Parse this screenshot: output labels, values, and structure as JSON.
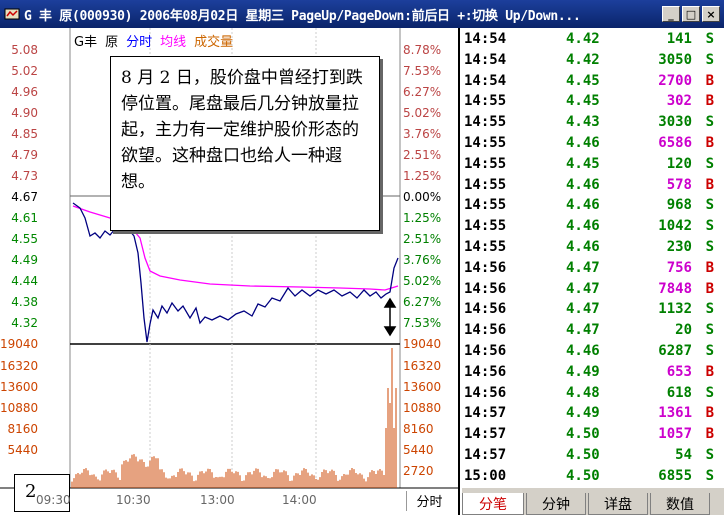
{
  "window": {
    "title": "G 丰   原(000930) 2006年08月02日 星期三 PageUp/PageDown:前后日 +:切换 Up/Down...",
    "buttons": [
      "_",
      "□",
      "×"
    ]
  },
  "legend": {
    "name": "G丰",
    "sub": "原",
    "fenshi": "分时",
    "junxian": "均线",
    "volume": "成交量"
  },
  "price_axis_left": [
    "5.08",
    "5.02",
    "4.96",
    "4.90",
    "4.85",
    "4.79",
    "4.73",
    "4.67",
    "4.61",
    "4.55",
    "4.49",
    "4.44",
    "4.38",
    "4.32"
  ],
  "price_axis_right": [
    "8.78%",
    "7.53%",
    "6.27%",
    "5.02%",
    "3.76%",
    "2.51%",
    "1.25%",
    "0.00%",
    "1.25%",
    "2.51%",
    "3.76%",
    "5.02%",
    "6.27%",
    "7.53%"
  ],
  "volume_axis_left": [
    "19040",
    "16320",
    "13600",
    "10880",
    "8160",
    "5440"
  ],
  "volume_axis_right": [
    "19040",
    "16320",
    "13600",
    "10880",
    "8160",
    "5440",
    "2720"
  ],
  "time_axis": [
    "09:30",
    "10:30",
    "13:00",
    "14:00"
  ],
  "fenshi_tab": "分时",
  "callout": "8 月 2 日，股价盘中曾经打到跌停位置。尾盘最后几分钟放量拉起，主力有一定维护股价形态的欲望。这种盘口也给人一种遐想。",
  "figure_number": "2",
  "ticks": [
    {
      "time": "14:54",
      "price": "4.42",
      "vol": "141",
      "side": "S"
    },
    {
      "time": "14:54",
      "price": "4.42",
      "vol": "3050",
      "side": "S"
    },
    {
      "time": "14:54",
      "price": "4.45",
      "vol": "2700",
      "side": "B"
    },
    {
      "time": "14:55",
      "price": "4.45",
      "vol": "302",
      "side": "B"
    },
    {
      "time": "14:55",
      "price": "4.43",
      "vol": "3030",
      "side": "S"
    },
    {
      "time": "14:55",
      "price": "4.46",
      "vol": "6586",
      "side": "B"
    },
    {
      "time": "14:55",
      "price": "4.45",
      "vol": "120",
      "side": "S"
    },
    {
      "time": "14:55",
      "price": "4.46",
      "vol": "578",
      "side": "B"
    },
    {
      "time": "14:55",
      "price": "4.46",
      "vol": "968",
      "side": "S"
    },
    {
      "time": "14:55",
      "price": "4.46",
      "vol": "1042",
      "side": "S"
    },
    {
      "time": "14:55",
      "price": "4.46",
      "vol": "230",
      "side": "S"
    },
    {
      "time": "14:56",
      "price": "4.47",
      "vol": "756",
      "side": "B"
    },
    {
      "time": "14:56",
      "price": "4.47",
      "vol": "7848",
      "side": "B"
    },
    {
      "time": "14:56",
      "price": "4.47",
      "vol": "1132",
      "side": "S"
    },
    {
      "time": "14:56",
      "price": "4.47",
      "vol": "20",
      "side": "S"
    },
    {
      "time": "14:56",
      "price": "4.46",
      "vol": "6287",
      "side": "S"
    },
    {
      "time": "14:56",
      "price": "4.49",
      "vol": "653",
      "side": "B"
    },
    {
      "time": "14:56",
      "price": "4.48",
      "vol": "618",
      "side": "S"
    },
    {
      "time": "14:57",
      "price": "4.49",
      "vol": "1361",
      "side": "B"
    },
    {
      "time": "14:57",
      "price": "4.50",
      "vol": "1057",
      "side": "B"
    },
    {
      "time": "14:57",
      "price": "4.50",
      "vol": "54",
      "side": "S"
    },
    {
      "time": "15:00",
      "price": "4.50",
      "vol": "6855",
      "side": "S"
    }
  ],
  "tabs": [
    "分笔",
    "分钟",
    "详盘",
    "数值"
  ],
  "colors": {
    "price_line": "#0000aa",
    "avg_line": "#ff00ff",
    "volume_bar": "#cc4400",
    "buy": "#cc0000",
    "sell": "#008000"
  }
}
